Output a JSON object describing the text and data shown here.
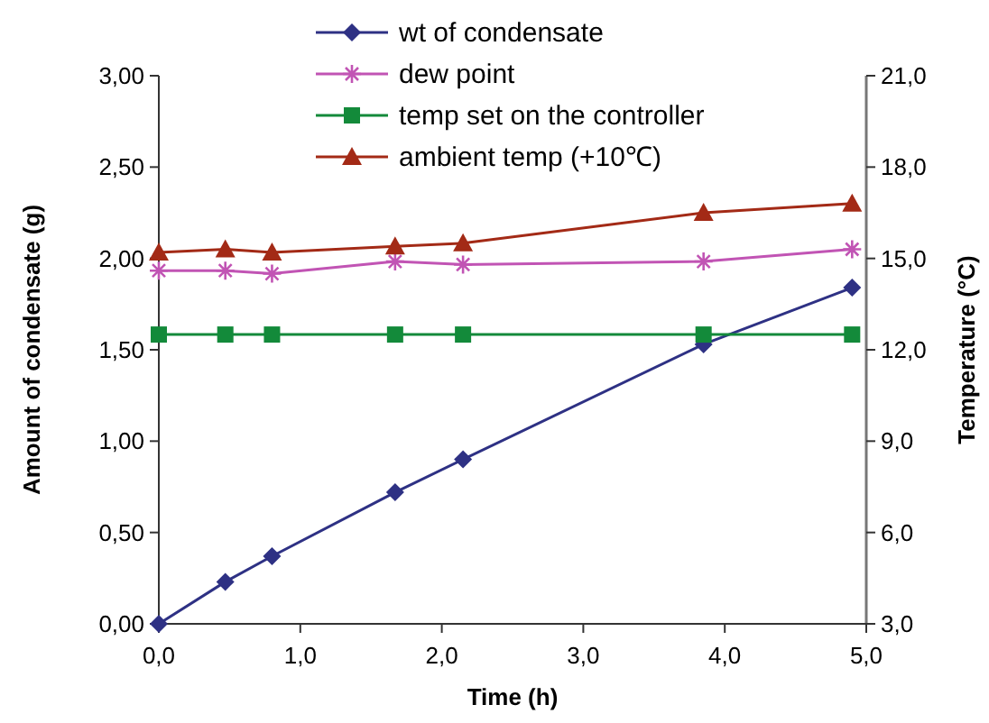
{
  "chart_data": {
    "type": "line",
    "xlabel": "Time (h)",
    "ylabel": "Amount of condensate (g)",
    "y2label": "Temperature (°C)",
    "x": [
      0,
      0.47,
      0.8,
      1.67,
      2.15,
      3.85,
      4.9
    ],
    "series": [
      {
        "name": "wt of condensate",
        "color": "#2e3184",
        "marker": "diamond",
        "values": [
          0,
          0.23,
          0.37,
          0.72,
          0.9,
          1.53,
          1.84
        ]
      },
      {
        "name": "dew point",
        "color": "#c154b4",
        "marker": "cross",
        "axis": "y2",
        "values": [
          14.6,
          14.6,
          14.5,
          14.9,
          14.8,
          14.9,
          15.3
        ]
      },
      {
        "name": "temp set on the controller",
        "color": "#138a3a",
        "marker": "square",
        "axis": "y2",
        "values": [
          12.5,
          12.5,
          12.5,
          12.5,
          12.5,
          12.5,
          12.5
        ]
      },
      {
        "name": "ambient temp (+10℃)",
        "color": "#a32a16",
        "marker": "triangle",
        "axis": "y2",
        "values": [
          15.2,
          15.3,
          15.2,
          15.4,
          15.5,
          16.5,
          16.8
        ]
      }
    ],
    "xlim": [
      0,
      5
    ],
    "xticks": [
      {
        "value": 0,
        "label": "0,0"
      },
      {
        "value": 1,
        "label": "1,0"
      },
      {
        "value": 2,
        "label": "2,0"
      },
      {
        "value": 3,
        "label": "3,0"
      },
      {
        "value": 4,
        "label": "4,0"
      },
      {
        "value": 5,
        "label": "5,0"
      }
    ],
    "ylim": [
      0,
      3
    ],
    "yticks": [
      {
        "value": 0,
        "label": "0,00"
      },
      {
        "value": 0.5,
        "label": "0,50"
      },
      {
        "value": 1,
        "label": "1,00"
      },
      {
        "value": 1.5,
        "label": "1,50"
      },
      {
        "value": 2,
        "label": "2,00"
      },
      {
        "value": 2.5,
        "label": "2,50"
      },
      {
        "value": 3,
        "label": "3,00"
      }
    ],
    "y2lim": [
      3,
      21
    ],
    "y2ticks": [
      {
        "value": 3,
        "label": "3,0"
      },
      {
        "value": 6,
        "label": "6,0"
      },
      {
        "value": 9,
        "label": "9,0"
      },
      {
        "value": 12,
        "label": "12,0"
      },
      {
        "value": 15,
        "label": "15,0"
      },
      {
        "value": 18,
        "label": "18,0"
      },
      {
        "value": 21,
        "label": "21,0"
      }
    ],
    "grid": false,
    "legend": "top left",
    "line_style": "solid"
  }
}
